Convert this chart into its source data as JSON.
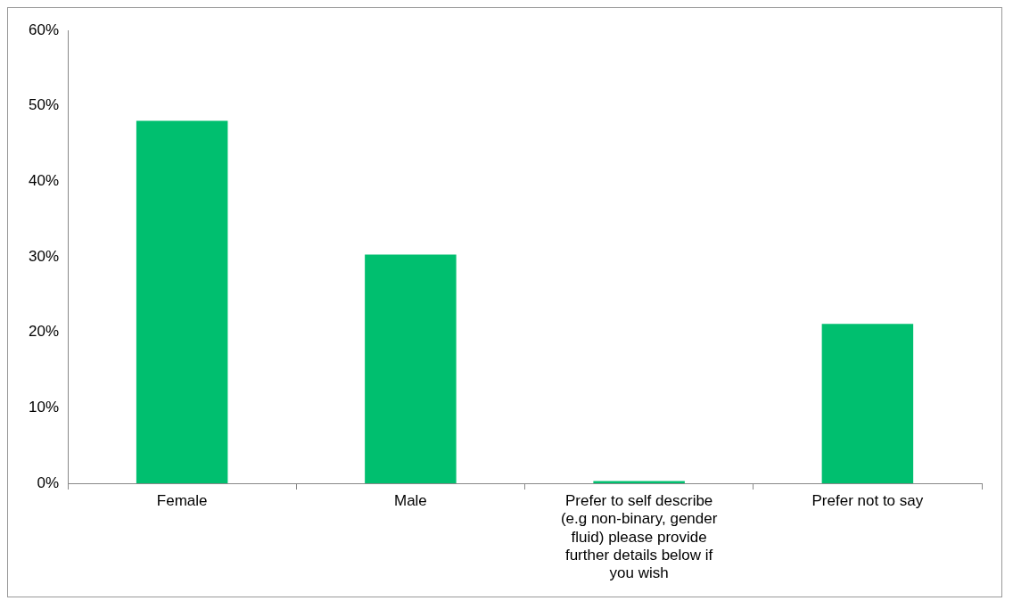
{
  "chart_data": {
    "type": "bar",
    "categories": [
      "Female",
      "Male",
      "Prefer to self describe (e.g non-binary, gender fluid) please provide further details below if you wish",
      "Prefer not to say"
    ],
    "values": [
      48.0,
      30.3,
      0.3,
      21.1
    ],
    "color": "#00bf6f",
    "ylim": [
      0,
      60
    ],
    "yticks": [
      {
        "value": 0,
        "label": "0%"
      },
      {
        "value": 10,
        "label": "10%"
      },
      {
        "value": 20,
        "label": "20%"
      },
      {
        "value": 30,
        "label": "30%"
      },
      {
        "value": 40,
        "label": "40%"
      },
      {
        "value": 50,
        "label": "50%"
      },
      {
        "value": 60,
        "label": "60%"
      }
    ],
    "grid": false,
    "legend": false
  }
}
